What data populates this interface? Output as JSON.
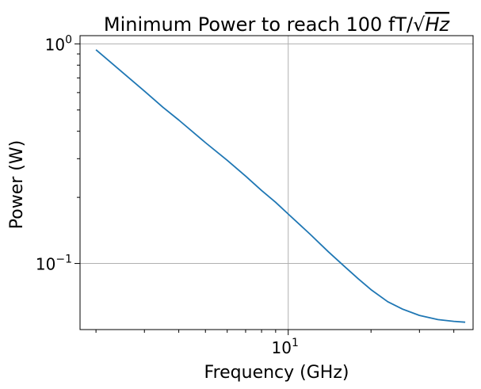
{
  "chart_data": {
    "type": "line",
    "title": "Minimum Power to reach 100 fT/√Hz",
    "title_parts": {
      "text": "Minimum Power to reach 100 fT/",
      "radical": "√",
      "radicand": "Hz"
    },
    "xlabel": "Frequency (GHz)",
    "ylabel": "Power (W)",
    "x_scale": "log",
    "y_scale": "log",
    "xlim": [
      1.75,
      47
    ],
    "ylim": [
      0.05,
      1.09
    ],
    "grid": true,
    "line_color": "#1f77b4",
    "x_ticks": [
      {
        "base": "10",
        "exp": "1",
        "value": 10
      }
    ],
    "y_ticks": [
      {
        "base": "10",
        "exp": "0",
        "value": 1
      },
      {
        "base": "10",
        "exp": "−1",
        "value": 0.1
      }
    ],
    "series": [
      {
        "x": [
          2,
          2.5,
          3,
          3.5,
          4,
          5,
          6,
          7,
          8,
          9,
          10,
          12,
          14,
          16,
          18,
          20,
          23,
          26,
          30,
          35,
          40,
          44
        ],
        "y": [
          0.94,
          0.74,
          0.61,
          0.515,
          0.45,
          0.355,
          0.295,
          0.25,
          0.215,
          0.19,
          0.168,
          0.136,
          0.113,
          0.097,
          0.085,
          0.076,
          0.067,
          0.062,
          0.058,
          0.0555,
          0.0545,
          0.054
        ]
      }
    ]
  }
}
